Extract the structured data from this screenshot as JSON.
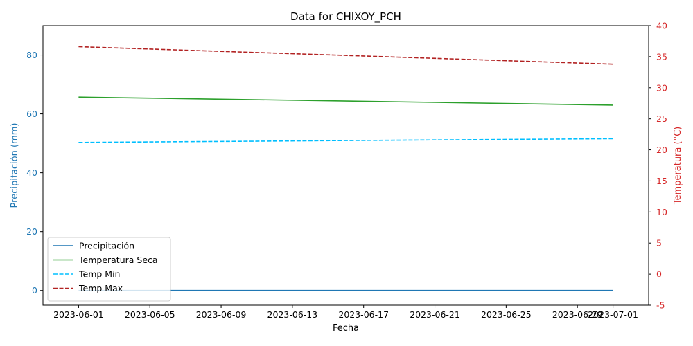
{
  "chart_data": {
    "type": "line",
    "title": "Data for CHIXOY_PCH",
    "xlabel": "Fecha",
    "ylabel_left": "Precipitación (mm)",
    "ylabel_right": "Temperatura (°C)",
    "x_ticks": [
      "2023-06-01",
      "2023-06-05",
      "2023-06-09",
      "2023-06-13",
      "2023-06-17",
      "2023-06-21",
      "2023-06-25",
      "2023-06-29",
      "2023-07-01"
    ],
    "x": [
      "2023-06-01",
      "2023-07-01"
    ],
    "xlim": [
      "2023-05-30",
      "2023-07-03"
    ],
    "ylim_left": [
      -5,
      90
    ],
    "yticks_left": [
      0,
      20,
      40,
      60,
      80
    ],
    "ylim_right": [
      -5,
      40
    ],
    "yticks_right": [
      -5,
      0,
      5,
      10,
      15,
      20,
      25,
      30,
      35,
      40
    ],
    "left_axis_color": "#1f77b4",
    "right_axis_color": "#d62728",
    "legend_position": "lower-left",
    "series": [
      {
        "name": "Precipitación",
        "axis": "left",
        "color": "#1f77b4",
        "style": "solid",
        "values": [
          0,
          0
        ]
      },
      {
        "name": "Temperatura Seca",
        "axis": "right",
        "color": "#2ca02c",
        "style": "solid",
        "values": [
          28.5,
          27.2
        ]
      },
      {
        "name": "Temp Min",
        "axis": "right",
        "color": "#00bfff",
        "style": "dashed",
        "values": [
          21.2,
          21.8
        ]
      },
      {
        "name": "Temp Max",
        "axis": "right",
        "color": "#b22222",
        "style": "dashed",
        "values": [
          36.6,
          33.8
        ]
      }
    ]
  }
}
